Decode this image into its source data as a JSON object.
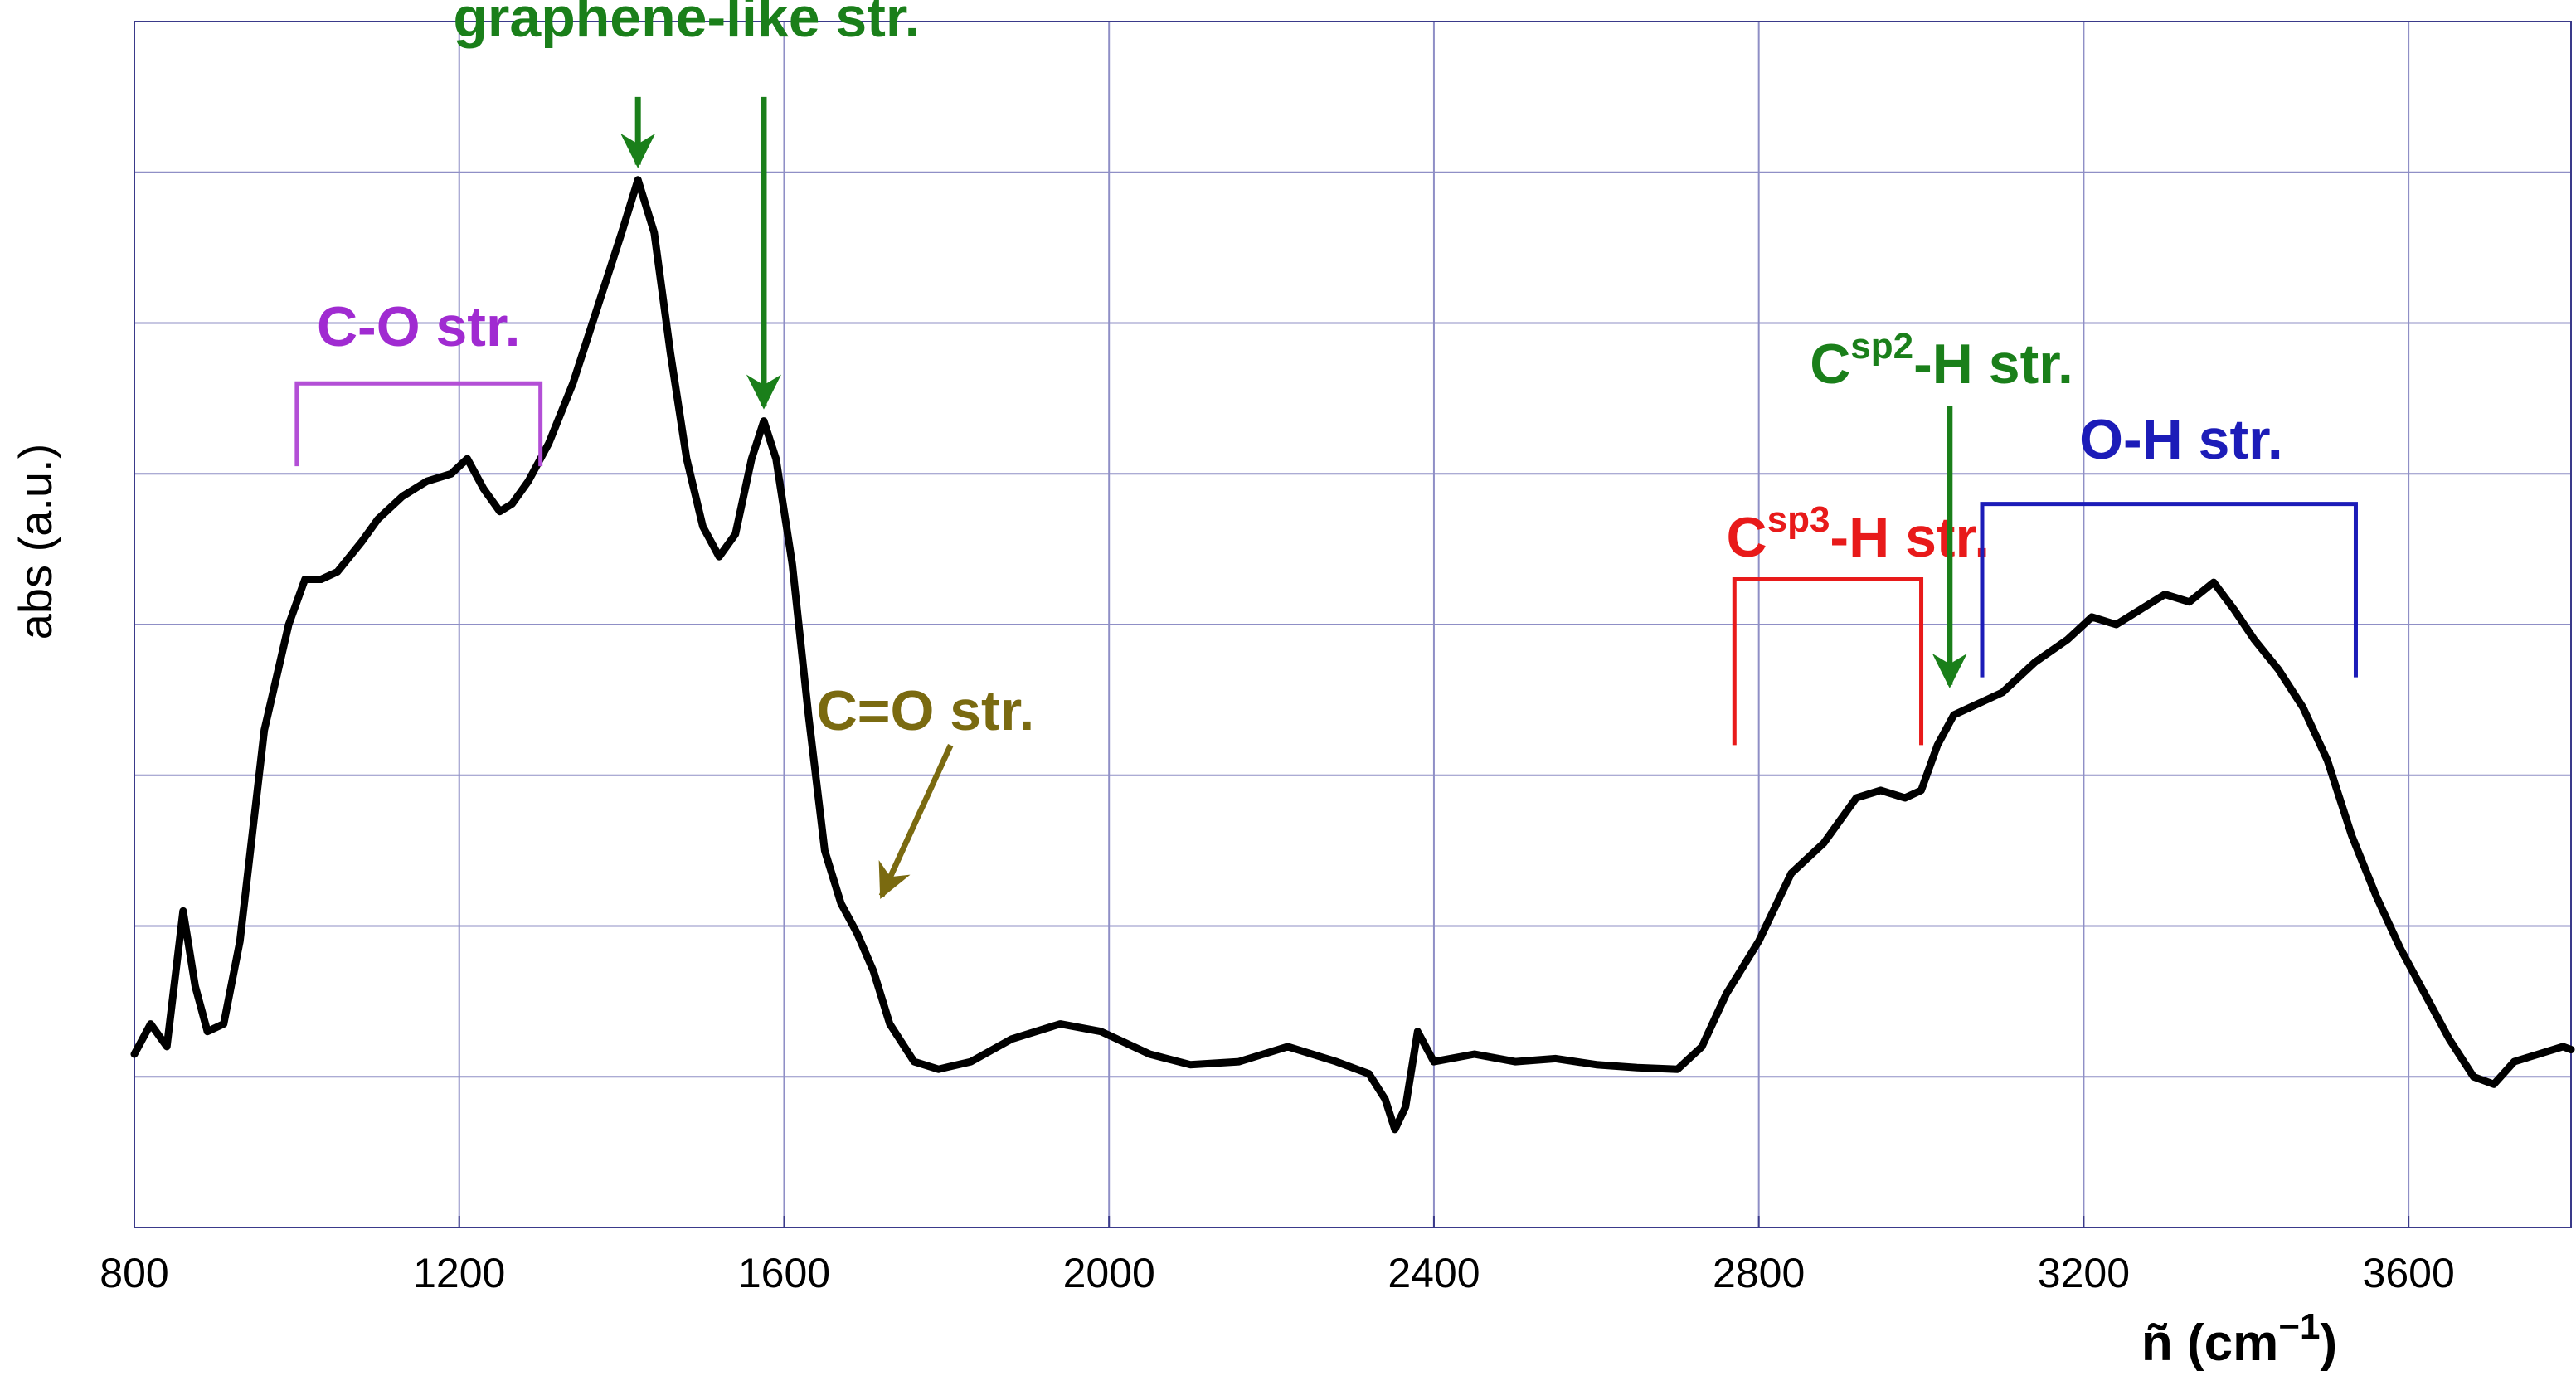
{
  "chart_data": {
    "type": "line",
    "title": "",
    "xlabel": "ñ (cm",
    "xlabel_sup": "−1",
    "xlabel_close": ")",
    "ylabel": "abs (a.u.)",
    "xlim": [
      800,
      3800
    ],
    "ylim": [
      -1,
      7
    ],
    "x_ticks": [
      800,
      1200,
      1600,
      2000,
      2400,
      2800,
      3200,
      3600
    ],
    "x_tick_labels": [
      "800",
      "1200",
      "1600",
      "2000",
      "2400",
      "2800",
      "3200",
      "3600"
    ],
    "x_grid": [
      800,
      1200,
      1600,
      2000,
      2400,
      2800,
      3200,
      3600
    ],
    "y_grid": [
      -1,
      0,
      1,
      2,
      3,
      4,
      5,
      6,
      7
    ],
    "grid": true,
    "line_color": "#000000",
    "series": [
      {
        "name": "",
        "x": [
          800,
          820,
          840,
          860,
          875,
          890,
          910,
          930,
          960,
          990,
          1010,
          1030,
          1050,
          1080,
          1100,
          1130,
          1160,
          1190,
          1210,
          1230,
          1250,
          1265,
          1285,
          1310,
          1340,
          1370,
          1400,
          1420,
          1440,
          1460,
          1480,
          1500,
          1520,
          1540,
          1560,
          1575,
          1590,
          1610,
          1630,
          1650,
          1670,
          1690,
          1710,
          1730,
          1760,
          1790,
          1830,
          1880,
          1940,
          1990,
          2050,
          2100,
          2160,
          2220,
          2280,
          2320,
          2340,
          2352,
          2365,
          2380,
          2400,
          2450,
          2500,
          2550,
          2600,
          2650,
          2700,
          2730,
          2760,
          2800,
          2840,
          2880,
          2920,
          2950,
          2980,
          3000,
          3020,
          3040,
          3060,
          3080,
          3100,
          3140,
          3180,
          3210,
          3240,
          3270,
          3300,
          3330,
          3360,
          3385,
          3410,
          3440,
          3470,
          3500,
          3530,
          3560,
          3590,
          3620,
          3650,
          3680,
          3705,
          3730,
          3760,
          3790,
          3800
        ],
        "y": [
          0.15,
          0.35,
          0.2,
          1.1,
          0.6,
          0.3,
          0.35,
          0.9,
          2.3,
          3.0,
          3.3,
          3.3,
          3.35,
          3.55,
          3.7,
          3.85,
          3.95,
          4.0,
          4.1,
          3.9,
          3.75,
          3.8,
          3.95,
          4.2,
          4.6,
          5.1,
          5.6,
          5.95,
          5.6,
          4.8,
          4.1,
          3.65,
          3.45,
          3.6,
          4.1,
          4.35,
          4.1,
          3.4,
          2.4,
          1.5,
          1.15,
          0.95,
          0.7,
          0.35,
          0.1,
          0.05,
          0.1,
          0.25,
          0.35,
          0.3,
          0.15,
          0.08,
          0.1,
          0.2,
          0.1,
          0.02,
          -0.15,
          -0.35,
          -0.2,
          0.3,
          0.1,
          0.15,
          0.1,
          0.12,
          0.08,
          0.06,
          0.05,
          0.2,
          0.55,
          0.9,
          1.35,
          1.55,
          1.85,
          1.9,
          1.85,
          1.9,
          2.2,
          2.4,
          2.45,
          2.5,
          2.55,
          2.75,
          2.9,
          3.05,
          3.0,
          3.1,
          3.2,
          3.15,
          3.28,
          3.1,
          2.9,
          2.7,
          2.45,
          2.1,
          1.6,
          1.2,
          0.85,
          0.55,
          0.25,
          0.0,
          -0.05,
          0.1,
          0.15,
          0.2,
          0.18
        ]
      }
    ],
    "annotations": [
      {
        "text": "graphene-like str.",
        "color": "#1a7f1a",
        "x": 1480,
        "y": 6.9,
        "anchor": "middle",
        "type": "text"
      },
      {
        "type": "arrow",
        "color": "#1a7f1a",
        "x1": 1420,
        "y1": 6.5,
        "x2": 1420,
        "y2": 6.05
      },
      {
        "type": "arrow",
        "color": "#1a7f1a",
        "x1": 1575,
        "y1": 6.5,
        "x2": 1575,
        "y2": 4.45
      },
      {
        "text": "C-O str.",
        "color": "#a02bd1",
        "x": 1150,
        "y": 4.85,
        "anchor": "middle",
        "type": "text"
      },
      {
        "type": "bracket",
        "color": "#b34fd6",
        "x1": 1000,
        "x2": 1300,
        "y_top": 4.6,
        "y_bottom": 4.05
      },
      {
        "text": "C=O str.",
        "color": "#7a6a10",
        "x": 1640,
        "y": 2.3,
        "anchor": "start",
        "type": "text"
      },
      {
        "type": "arrow",
        "color": "#7a6a10",
        "x1": 1805,
        "y1": 2.2,
        "x2": 1720,
        "y2": 1.2
      },
      {
        "text": "C",
        "sup": "sp3",
        "tail": "-H str.",
        "color": "#e81a1a",
        "x": 2760,
        "y": 3.45,
        "anchor": "start",
        "type": "text-sup"
      },
      {
        "type": "bracket",
        "color": "#e81a1a",
        "x1": 2770,
        "x2": 3000,
        "y_top": 3.3,
        "y_bottom": 2.2
      },
      {
        "text": "C",
        "sup": "sp2",
        "tail": "-H str.",
        "color": "#1a7f1a",
        "x": 3025,
        "y": 4.6,
        "anchor": "middle",
        "type": "text-sup"
      },
      {
        "type": "arrow",
        "color": "#1a7f1a",
        "x1": 3035,
        "y1": 4.45,
        "x2": 3035,
        "y2": 2.6
      },
      {
        "text": "O-H str.",
        "color": "#1c1cb8",
        "x": 3320,
        "y": 4.1,
        "anchor": "middle",
        "type": "text"
      },
      {
        "type": "bracket",
        "color": "#1c1cb8",
        "x1": 3075,
        "x2": 3535,
        "y_top": 3.8,
        "y_bottom": 2.65
      }
    ]
  }
}
